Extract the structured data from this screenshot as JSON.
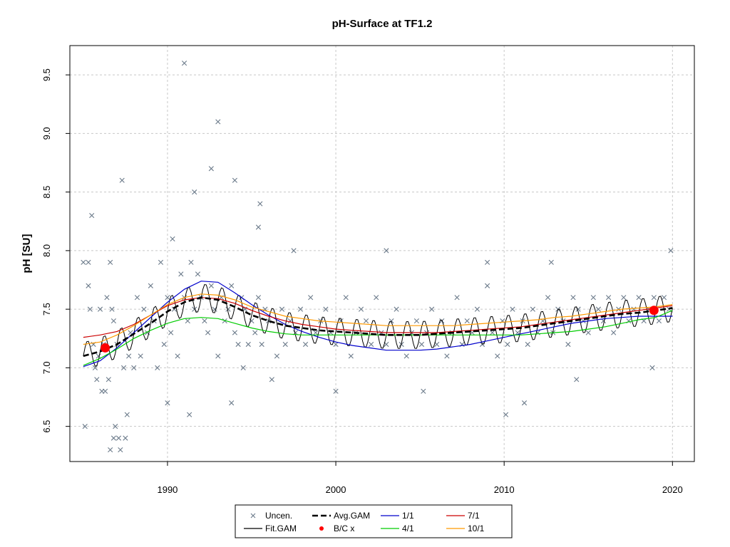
{
  "chart_data": {
    "type": "line",
    "title": "pH-Surface at TF1.2",
    "xlabel": "",
    "ylabel": "pH [SU]",
    "xlim": [
      1984.2,
      2021.3
    ],
    "ylim": [
      6.2,
      9.75
    ],
    "x_ticks": [
      1990,
      2000,
      2010,
      2020
    ],
    "y_ticks": [
      6.5,
      7.0,
      7.5,
      8.0,
      8.5,
      9.0,
      9.5
    ],
    "grid": true,
    "legend_position": "bottom-center",
    "colors": {
      "points": "#6b7a8a",
      "fit_gam": "#000000",
      "avg_gam": "#000000",
      "bc_x": "#ff0000",
      "s1_1": "#0000cc",
      "s4_1": "#00cc00",
      "s7_1": "#cc0000",
      "s10_1": "#ff9900"
    },
    "legend": [
      {
        "label": "Uncen.",
        "type": "x",
        "color": "#6b7a8a"
      },
      {
        "label": "Avg.GAM",
        "type": "dashed",
        "color": "#000000"
      },
      {
        "label": "1/1",
        "type": "line",
        "color": "#0000cc"
      },
      {
        "label": "7/1",
        "type": "line",
        "color": "#cc0000"
      },
      {
        "label": "Fit.GAM",
        "type": "line",
        "color": "#000000"
      },
      {
        "label": "B/C x",
        "type": "dot",
        "color": "#ff0000"
      },
      {
        "label": "4/1",
        "type": "line",
        "color": "#00cc00"
      },
      {
        "label": "10/1",
        "type": "line",
        "color": "#ff9900"
      }
    ],
    "series": [
      {
        "name": "1/1",
        "x": [
          1985,
          1986,
          1987,
          1988,
          1989,
          1990,
          1991,
          1992,
          1993,
          1994,
          1995,
          1996,
          1997,
          1998,
          1999,
          2000,
          2001,
          2002,
          2003,
          2004,
          2005,
          2006,
          2007,
          2008,
          2009,
          2010,
          2011,
          2012,
          2013,
          2014,
          2015,
          2016,
          2017,
          2018,
          2019,
          2020
        ],
        "y": [
          7.01,
          7.06,
          7.17,
          7.3,
          7.43,
          7.56,
          7.67,
          7.74,
          7.73,
          7.64,
          7.54,
          7.45,
          7.37,
          7.31,
          7.26,
          7.22,
          7.19,
          7.17,
          7.15,
          7.15,
          7.15,
          7.16,
          7.18,
          7.2,
          7.23,
          7.26,
          7.29,
          7.32,
          7.35,
          7.38,
          7.4,
          7.42,
          7.43,
          7.44,
          7.44,
          7.44
        ]
      },
      {
        "name": "4/1",
        "x": [
          1985,
          1986,
          1987,
          1988,
          1989,
          1990,
          1991,
          1992,
          1993,
          1994,
          1995,
          1996,
          1997,
          1998,
          1999,
          2000,
          2001,
          2002,
          2003,
          2004,
          2005,
          2006,
          2007,
          2008,
          2009,
          2010,
          2011,
          2012,
          2013,
          2014,
          2015,
          2016,
          2017,
          2018,
          2019,
          2020
        ],
        "y": [
          7.02,
          7.08,
          7.16,
          7.25,
          7.32,
          7.38,
          7.42,
          7.43,
          7.42,
          7.38,
          7.34,
          7.31,
          7.29,
          7.28,
          7.28,
          7.28,
          7.28,
          7.28,
          7.28,
          7.28,
          7.28,
          7.28,
          7.28,
          7.28,
          7.28,
          7.28,
          7.28,
          7.29,
          7.3,
          7.31,
          7.33,
          7.35,
          7.38,
          7.41,
          7.43,
          7.49
        ]
      },
      {
        "name": "7/1",
        "x": [
          1985,
          1986,
          1987,
          1988,
          1989,
          1990,
          1991,
          1992,
          1993,
          1994,
          1995,
          1996,
          1997,
          1998,
          1999,
          2000,
          2001,
          2002,
          2003,
          2004,
          2005,
          2006,
          2007,
          2008,
          2009,
          2010,
          2011,
          2012,
          2013,
          2014,
          2015,
          2016,
          2017,
          2018,
          2019,
          2020
        ],
        "y": [
          7.26,
          7.28,
          7.31,
          7.37,
          7.45,
          7.53,
          7.58,
          7.6,
          7.59,
          7.55,
          7.49,
          7.44,
          7.4,
          7.37,
          7.35,
          7.33,
          7.32,
          7.31,
          7.3,
          7.3,
          7.3,
          7.3,
          7.31,
          7.32,
          7.33,
          7.34,
          7.35,
          7.37,
          7.39,
          7.41,
          7.43,
          7.45,
          7.47,
          7.49,
          7.51,
          7.53
        ]
      },
      {
        "name": "10/1",
        "x": [
          1985,
          1986,
          1987,
          1988,
          1989,
          1990,
          1991,
          1992,
          1993,
          1994,
          1995,
          1996,
          1997,
          1998,
          1999,
          2000,
          2001,
          2002,
          2003,
          2004,
          2005,
          2006,
          2007,
          2008,
          2009,
          2010,
          2011,
          2012,
          2013,
          2014,
          2015,
          2016,
          2017,
          2018,
          2019,
          2020
        ],
        "y": [
          7.2,
          7.22,
          7.28,
          7.36,
          7.45,
          7.54,
          7.6,
          7.63,
          7.62,
          7.58,
          7.52,
          7.48,
          7.44,
          7.42,
          7.4,
          7.39,
          7.38,
          7.37,
          7.36,
          7.36,
          7.36,
          7.36,
          7.36,
          7.37,
          7.38,
          7.39,
          7.4,
          7.41,
          7.43,
          7.44,
          7.46,
          7.48,
          7.5,
          7.51,
          7.52,
          7.54
        ]
      },
      {
        "name": "Avg.GAM",
        "x": [
          1985,
          1986,
          1987,
          1988,
          1989,
          1990,
          1991,
          1992,
          1993,
          1994,
          1995,
          1996,
          1997,
          1998,
          1999,
          2000,
          2001,
          2002,
          2003,
          2004,
          2005,
          2006,
          2007,
          2008,
          2009,
          2010,
          2011,
          2012,
          2013,
          2014,
          2015,
          2016,
          2017,
          2018,
          2019,
          2020
        ],
        "y": [
          7.1,
          7.14,
          7.2,
          7.29,
          7.38,
          7.48,
          7.56,
          7.6,
          7.58,
          7.52,
          7.45,
          7.4,
          7.36,
          7.34,
          7.32,
          7.31,
          7.3,
          7.29,
          7.28,
          7.28,
          7.28,
          7.29,
          7.3,
          7.31,
          7.32,
          7.33,
          7.34,
          7.36,
          7.38,
          7.4,
          7.42,
          7.44,
          7.46,
          7.47,
          7.49,
          7.51
        ]
      },
      {
        "name": "Fit.GAM",
        "seasonal_amplitude": 0.12,
        "x": [
          1985,
          1986,
          1987,
          1988,
          1989,
          1990,
          1991,
          1992,
          1993,
          1994,
          1995,
          1996,
          1997,
          1998,
          1999,
          2000,
          2001,
          2002,
          2003,
          2004,
          2005,
          2006,
          2007,
          2008,
          2009,
          2010,
          2011,
          2012,
          2013,
          2014,
          2015,
          2016,
          2017,
          2018,
          2019,
          2020
        ],
        "y": [
          7.1,
          7.14,
          7.2,
          7.29,
          7.38,
          7.48,
          7.56,
          7.6,
          7.58,
          7.52,
          7.45,
          7.4,
          7.36,
          7.34,
          7.32,
          7.31,
          7.3,
          7.29,
          7.28,
          7.28,
          7.28,
          7.29,
          7.3,
          7.31,
          7.32,
          7.33,
          7.34,
          7.36,
          7.38,
          7.4,
          7.42,
          7.44,
          7.46,
          7.47,
          7.49,
          7.51
        ]
      }
    ],
    "bc_points": {
      "x": [
        1986.3,
        2018.9
      ],
      "y": [
        7.17,
        7.49
      ]
    },
    "points": {
      "x": [
        1985.1,
        1985.3,
        1985.4,
        1985.5,
        1985.6,
        1985.7,
        1985.8,
        1985.9,
        1986.0,
        1986.1,
        1986.2,
        1986.3,
        1986.4,
        1986.5,
        1986.6,
        1986.7,
        1986.8,
        1986.9,
        1987.0,
        1987.2,
        1987.4,
        1987.5,
        1987.7,
        1987.8,
        1988.0,
        1988.2,
        1988.4,
        1988.6,
        1988.8,
        1989.0,
        1989.2,
        1989.4,
        1989.6,
        1989.8,
        1990.0,
        1990.2,
        1990.4,
        1990.6,
        1990.8,
        1991.0,
        1991.2,
        1991.4,
        1991.6,
        1991.8,
        1992.0,
        1992.2,
        1992.4,
        1992.6,
        1992.8,
        1993.0,
        1993.2,
        1993.4,
        1993.6,
        1993.8,
        1994.0,
        1994.2,
        1994.4,
        1994.6,
        1994.8,
        1995.0,
        1995.2,
        1995.4,
        1995.6,
        1995.8,
        1996.0,
        1996.2,
        1996.5,
        1996.8,
        1997.0,
        1997.3,
        1997.6,
        1997.9,
        1998.2,
        1998.5,
        1998.8,
        1999.1,
        1999.4,
        1999.7,
        2000.0,
        2000.3,
        2000.6,
        2000.9,
        2001.2,
        2001.5,
        2001.8,
        2002.1,
        2002.4,
        2002.7,
        2003.0,
        2003.3,
        2003.6,
        2003.9,
        2004.2,
        2004.5,
        2004.8,
        2005.1,
        2005.4,
        2005.7,
        2006.0,
        2006.3,
        2006.6,
        2006.9,
        2007.2,
        2007.5,
        2007.8,
        2008.1,
        2008.4,
        2008.7,
        2009.0,
        2009.3,
        2009.6,
        2009.9,
        2010.2,
        2010.5,
        2010.8,
        2011.1,
        2011.4,
        2011.7,
        2012.0,
        2012.3,
        2012.6,
        2012.9,
        2013.2,
        2013.5,
        2013.8,
        2014.1,
        2014.4,
        2014.7,
        2015.0,
        2015.3,
        2015.6,
        2015.9,
        2016.2,
        2016.5,
        2016.8,
        2017.1,
        2017.4,
        2017.7,
        2018.0,
        2018.3,
        2018.6,
        2018.9,
        2019.2,
        2019.5,
        2019.8,
        1991.0,
        1993.0,
        1992.6,
        1994.0,
        1991.6,
        1987.3,
        1995.5,
        1985.3,
        1986.6,
        1987.1,
        1987.6,
        1993.8,
        1991.3,
        2010.1,
        2011.2,
        1990.3,
        1985.0,
        1986.8,
        1990.0,
        1995.4,
        2018.8,
        2019.9,
        1997.5,
        2003.0,
        1994.5,
        2009.0,
        2014.3,
        2000.0,
        2005.2,
        2012.8
      ],
      "y": [
        6.5,
        7.7,
        7.5,
        8.3,
        7.2,
        7.0,
        6.9,
        7.1,
        7.5,
        6.8,
        7.2,
        6.8,
        7.6,
        6.9,
        7.9,
        7.5,
        7.4,
        6.5,
        7.2,
        6.3,
        7.0,
        6.4,
        7.1,
        7.3,
        7.0,
        7.6,
        7.1,
        7.5,
        7.3,
        7.7,
        7.4,
        7.0,
        7.9,
        7.2,
        7.6,
        7.3,
        7.5,
        7.1,
        7.8,
        7.6,
        7.4,
        7.9,
        7.5,
        7.8,
        7.6,
        7.4,
        7.3,
        7.7,
        7.5,
        7.1,
        7.6,
        7.4,
        7.5,
        7.7,
        7.3,
        7.2,
        7.6,
        7.5,
        7.2,
        7.4,
        7.3,
        7.6,
        7.2,
        7.5,
        7.4,
        6.9,
        7.1,
        7.5,
        7.2,
        7.4,
        7.3,
        7.5,
        7.2,
        7.6,
        7.3,
        7.4,
        7.5,
        7.3,
        7.2,
        7.4,
        7.6,
        7.1,
        7.3,
        7.5,
        7.4,
        7.2,
        7.6,
        7.3,
        7.2,
        7.4,
        7.5,
        7.2,
        7.1,
        7.3,
        7.4,
        7.2,
        7.3,
        7.5,
        7.2,
        7.4,
        7.1,
        7.3,
        7.6,
        7.2,
        7.4,
        7.3,
        7.5,
        7.2,
        7.7,
        7.3,
        7.1,
        7.4,
        7.2,
        7.5,
        7.3,
        7.4,
        7.2,
        7.5,
        7.3,
        7.4,
        7.6,
        7.3,
        7.5,
        7.4,
        7.2,
        7.6,
        7.5,
        7.4,
        7.3,
        7.6,
        7.5,
        7.4,
        7.6,
        7.3,
        7.5,
        7.6,
        7.4,
        7.5,
        7.6,
        7.4,
        7.5,
        7.6,
        7.4,
        7.6,
        7.5,
        9.6,
        9.1,
        8.7,
        8.6,
        8.5,
        8.6,
        8.4,
        7.9,
        6.3,
        6.4,
        6.6,
        6.7,
        6.6,
        6.6,
        6.7,
        8.1,
        7.9,
        6.4,
        6.7,
        8.2,
        7.0,
        8.0,
        8.0,
        8.0,
        7.0,
        7.9,
        6.9,
        6.8,
        6.8,
        7.9
      ]
    }
  }
}
